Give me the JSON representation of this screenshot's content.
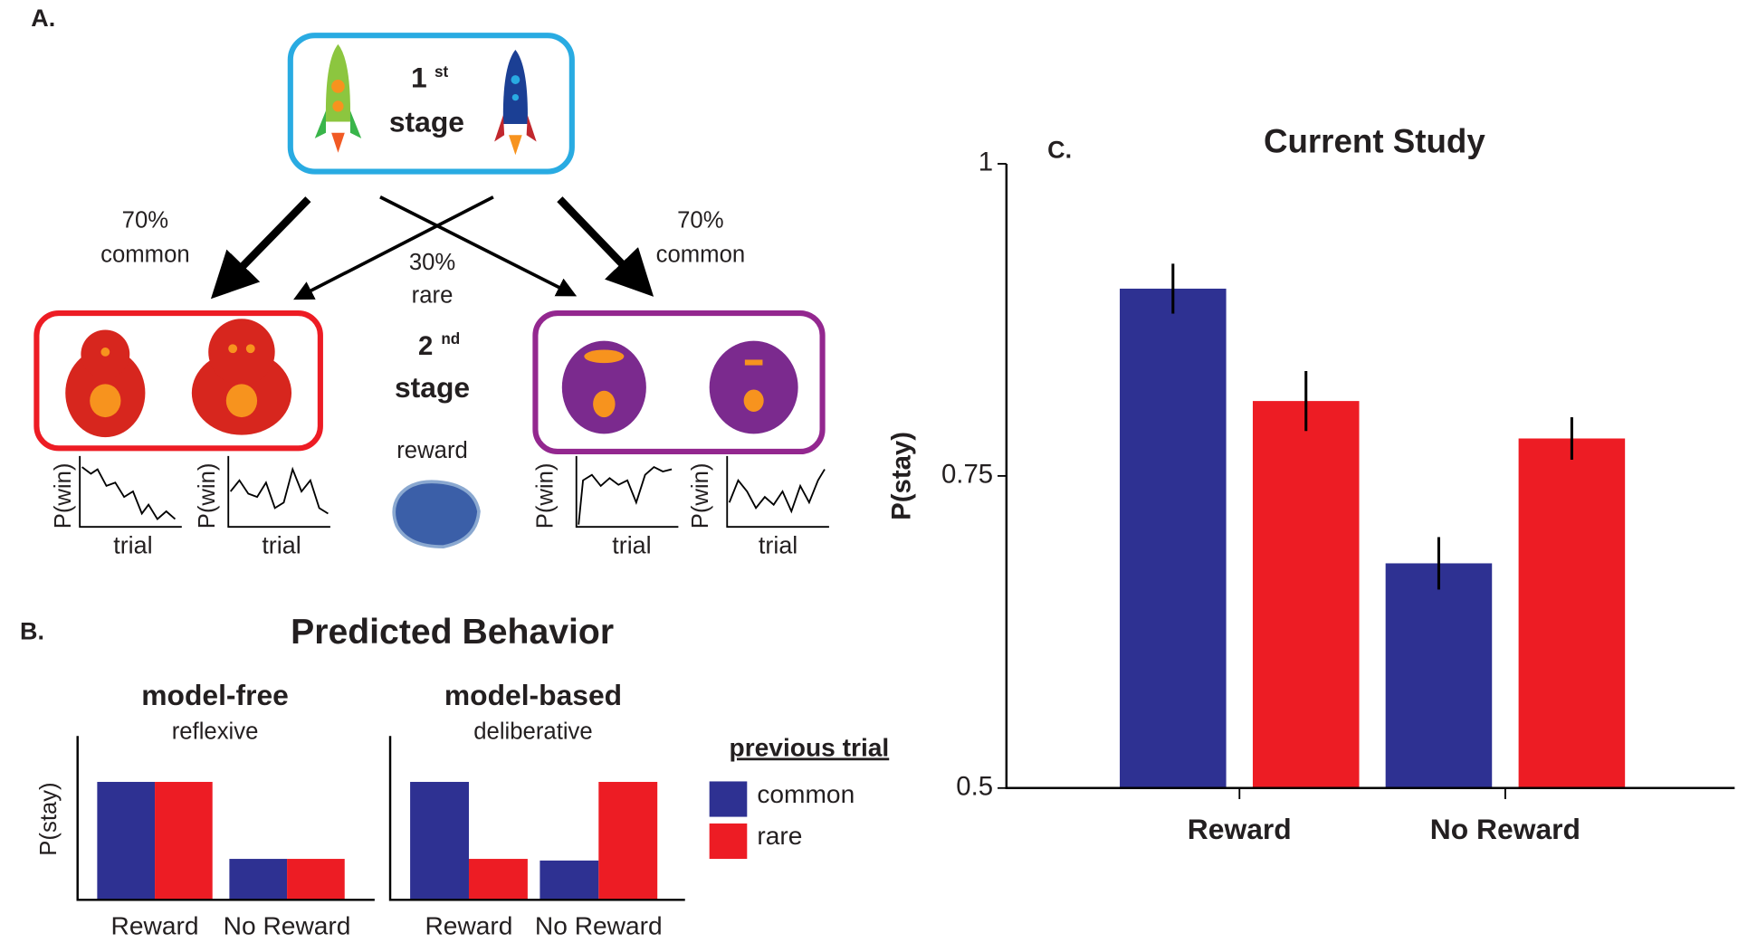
{
  "panel_a": {
    "label": "A.",
    "first_stage": {
      "number": "1",
      "suffix": "st",
      "word": "stage"
    },
    "left_transition": {
      "percent": "70%",
      "kind": "common"
    },
    "right_transition": {
      "percent": "70%",
      "kind": "common"
    },
    "rare_transition": {
      "percent": "30%",
      "kind": "rare"
    },
    "second_stage": {
      "number": "2",
      "suffix": "nd",
      "word": "stage"
    },
    "reward": "reward",
    "plots": [
      {
        "y_label": "P(win)",
        "x_label": "trial"
      },
      {
        "y_label": "P(win)",
        "x_label": "trial"
      },
      {
        "y_label": "P(win)",
        "x_label": "trial"
      },
      {
        "y_label": "P(win)",
        "x_label": "trial"
      }
    ]
  },
  "panel_b": {
    "label": "B.",
    "title": "Predicted Behavior",
    "legend_title": "previous trial"
  },
  "panel_c": {
    "label": "C."
  },
  "chart_data": [
    {
      "type": "bar",
      "title": "model-free",
      "subtitle": "reflexive",
      "y_label": "P(stay)",
      "categories": [
        "Reward",
        "No Reward"
      ],
      "ylim": [
        0,
        1
      ],
      "series": [
        {
          "name": "common",
          "color": "#2e3192",
          "values": [
            0.72,
            0.25
          ]
        },
        {
          "name": "rare",
          "color": "#ed1c24",
          "values": [
            0.72,
            0.25
          ]
        }
      ]
    },
    {
      "type": "bar",
      "title": "model-based",
      "subtitle": "deliberative",
      "categories": [
        "Reward",
        "No Reward"
      ],
      "ylim": [
        0,
        1
      ],
      "series": [
        {
          "color": "#2e3192",
          "values": [
            0.72,
            0.24
          ]
        },
        {
          "color": "#ed1c24",
          "values": [
            0.25,
            0.72
          ]
        }
      ]
    },
    {
      "type": "bar",
      "title": "Current Study",
      "y_label": "P(stay)",
      "categories": [
        "Reward",
        "No Reward"
      ],
      "ylim": [
        0.5,
        1
      ],
      "yticks": [
        0.5,
        0.75,
        1
      ],
      "series": [
        {
          "color": "#2e3192",
          "values": [
            0.9,
            0.68
          ],
          "errors": [
            0.02,
            0.021
          ]
        },
        {
          "color": "#ed1c24",
          "values": [
            0.81,
            0.78
          ],
          "errors": [
            0.024,
            0.017
          ]
        }
      ]
    }
  ]
}
